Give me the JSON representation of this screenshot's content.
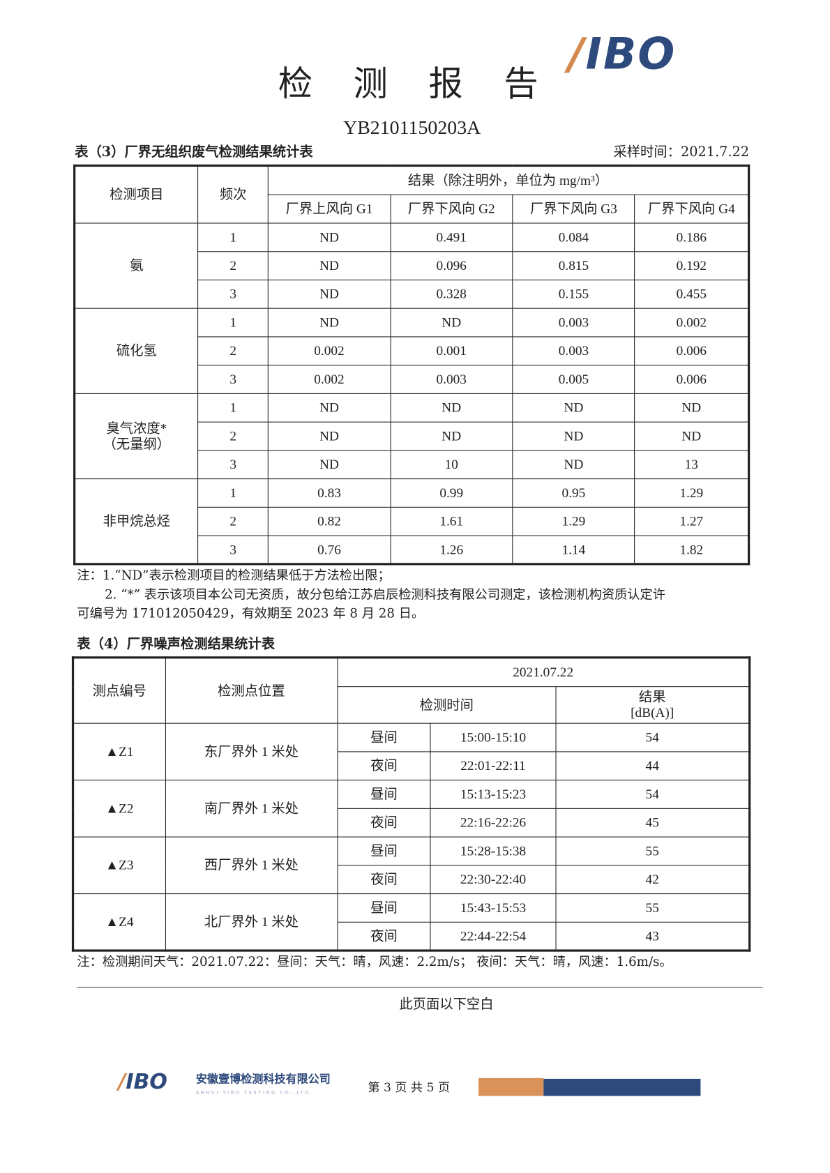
{
  "header": {
    "title": "检 测 报 告",
    "logo_text": "YIBO",
    "report_no": "YB2101150203A"
  },
  "table3": {
    "caption": "表（3）厂界无组织废气检测结果统计表",
    "sampling_time": "采样时间：2021.7.22",
    "headers": {
      "item": "检测项目",
      "freq": "频次",
      "result": "结果（除注明外，单位为 mg/m³）",
      "cols": [
        "厂界上风向 G1",
        "厂界下风向 G2",
        "厂界下风向 G3",
        "厂界下风向 G4"
      ]
    },
    "groups": [
      {
        "item": "氨",
        "sub": "",
        "rows": [
          [
            "1",
            "ND",
            "0.491",
            "0.084",
            "0.186"
          ],
          [
            "2",
            "ND",
            "0.096",
            "0.815",
            "0.192"
          ],
          [
            "3",
            "ND",
            "0.328",
            "0.155",
            "0.455"
          ]
        ]
      },
      {
        "item": "硫化氢",
        "sub": "",
        "rows": [
          [
            "1",
            "ND",
            "ND",
            "0.003",
            "0.002"
          ],
          [
            "2",
            "0.002",
            "0.001",
            "0.003",
            "0.006"
          ],
          [
            "3",
            "0.002",
            "0.003",
            "0.005",
            "0.006"
          ]
        ]
      },
      {
        "item": "臭气浓度*",
        "sub": "（无量纲）",
        "rows": [
          [
            "1",
            "ND",
            "ND",
            "ND",
            "ND"
          ],
          [
            "2",
            "ND",
            "ND",
            "ND",
            "ND"
          ],
          [
            "3",
            "ND",
            "10",
            "ND",
            "13"
          ]
        ]
      },
      {
        "item": "非甲烷总烃",
        "sub": "",
        "rows": [
          [
            "1",
            "0.83",
            "0.99",
            "0.95",
            "1.29"
          ],
          [
            "2",
            "0.82",
            "1.61",
            "1.29",
            "1.27"
          ],
          [
            "3",
            "0.76",
            "1.26",
            "1.14",
            "1.82"
          ]
        ]
      }
    ],
    "notes": [
      "注：1.“ND”表示检测项目的检测结果低于方法检出限；",
      "2. “*” 表示该项目本公司无资质，故分包给江苏启辰检测科技有限公司测定，该检测机构资质认定许",
      "可编号为 171012050429，有效期至 2023 年 8 月 28 日。"
    ]
  },
  "table4": {
    "caption": "表（4）厂界噪声检测结果统计表",
    "headers": {
      "point_id": "测点编号",
      "location": "检测点位置",
      "date": "2021.07.22",
      "time": "检测时间",
      "result": "结果",
      "unit": "[dB(A)]"
    },
    "points": [
      {
        "id": "▲Z1",
        "location": "东厂界外 1 米处",
        "rows": [
          [
            "昼间",
            "15:00-15:10",
            "54"
          ],
          [
            "夜间",
            "22:01-22:11",
            "44"
          ]
        ]
      },
      {
        "id": "▲Z2",
        "location": "南厂界外 1 米处",
        "rows": [
          [
            "昼间",
            "15:13-15:23",
            "54"
          ],
          [
            "夜间",
            "22:16-22:26",
            "45"
          ]
        ]
      },
      {
        "id": "▲Z3",
        "location": "西厂界外 1 米处",
        "rows": [
          [
            "昼间",
            "15:28-15:38",
            "55"
          ],
          [
            "夜间",
            "22:30-22:40",
            "42"
          ]
        ]
      },
      {
        "id": "▲Z4",
        "location": "北厂界外 1 米处",
        "rows": [
          [
            "昼间",
            "15:43-15:53",
            "55"
          ],
          [
            "夜间",
            "22:44-22:54",
            "43"
          ]
        ]
      }
    ],
    "note": "注：检测期间天气：2021.07.22：昼间：天气：晴，风速：2.2m/s；  夜间：天气：晴，风速：1.6m/s。"
  },
  "blank_notice": "此页面以下空白",
  "footer": {
    "logo_text": "YIBO",
    "company": "安徽壹博检测科技有限公司",
    "company_en": "ANHUI YIBO TESTING CO.,LTD",
    "page": "第 3 页 共 5 页"
  },
  "colors": {
    "brand_blue": "#2e4a7c",
    "brand_orange": "#d9925a"
  }
}
